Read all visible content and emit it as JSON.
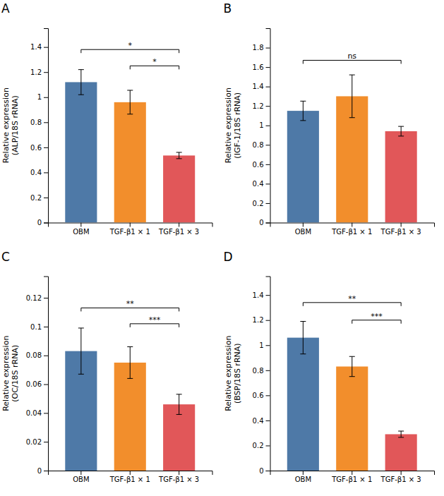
{
  "chart_data": [
    {
      "type": "bar",
      "title": "A",
      "ylabel": "Relative expression\n(ALP/18S rRNA)",
      "categories": [
        "OBM",
        "TGF-β1 × 1",
        "TGF-β1 × 3"
      ],
      "values": [
        1.12,
        0.96,
        0.535
      ],
      "errors": [
        0.1,
        0.095,
        0.025
      ],
      "ylim": [
        0,
        1.55
      ],
      "yticks": [
        0,
        0.2,
        0.4,
        0.6,
        0.8,
        1,
        1.2,
        1.4
      ],
      "grid": false,
      "annotations": [
        {
          "from": "OBM",
          "to": "TGF-β1 × 3",
          "y": 1.38,
          "label": "*"
        },
        {
          "from": "TGF-β1 × 1",
          "to": "TGF-β1 × 3",
          "y": 1.25,
          "label": "*"
        }
      ]
    },
    {
      "type": "bar",
      "title": "B",
      "ylabel": "Relative expression\n(IGF-1/18S rRNA)",
      "categories": [
        "OBM",
        "TGF-β1 × 1",
        "TGF-β1 × 3"
      ],
      "values": [
        1.15,
        1.3,
        0.94
      ],
      "errors": [
        0.1,
        0.22,
        0.05
      ],
      "ylim": [
        0,
        2
      ],
      "yticks": [
        0,
        0.2,
        0.4,
        0.6,
        0.8,
        1,
        1.2,
        1.4,
        1.6,
        1.8
      ],
      "grid": false,
      "annotations": [
        {
          "from": "OBM",
          "to": "TGF-β1 × 3",
          "y": 1.67,
          "label": "ns"
        }
      ]
    },
    {
      "type": "bar",
      "title": "C",
      "ylabel": "Relative expression\n(OC/18S rRNA)",
      "categories": [
        "OBM",
        "TGF-β1 × 1",
        "TGF-β1 × 3"
      ],
      "values": [
        0.083,
        0.075,
        0.046
      ],
      "errors": [
        0.016,
        0.011,
        0.007
      ],
      "ylim": [
        0,
        0.135
      ],
      "yticks": [
        0,
        0.02,
        0.04,
        0.06,
        0.08,
        0.1,
        0.12
      ],
      "grid": false,
      "annotations": [
        {
          "from": "OBM",
          "to": "TGF-β1 × 3",
          "y": 0.113,
          "label": "**"
        },
        {
          "from": "TGF-β1 × 1",
          "to": "TGF-β1 × 3",
          "y": 0.102,
          "label": "***"
        }
      ]
    },
    {
      "type": "bar",
      "title": "D",
      "ylabel": "Relative expression\n(BSP/18S rRNA)",
      "categories": [
        "OBM",
        "TGF-β1 × 1",
        "TGF-β1 × 3"
      ],
      "values": [
        1.06,
        0.83,
        0.29
      ],
      "errors": [
        0.13,
        0.08,
        0.025
      ],
      "ylim": [
        0,
        1.55
      ],
      "yticks": [
        0,
        0.2,
        0.4,
        0.6,
        0.8,
        1,
        1.2,
        1.4
      ],
      "grid": false,
      "annotations": [
        {
          "from": "OBM",
          "to": "TGF-β1 × 3",
          "y": 1.34,
          "label": "**"
        },
        {
          "from": "TGF-β1 × 1",
          "to": "TGF-β1 × 3",
          "y": 1.2,
          "label": "***"
        }
      ]
    }
  ]
}
